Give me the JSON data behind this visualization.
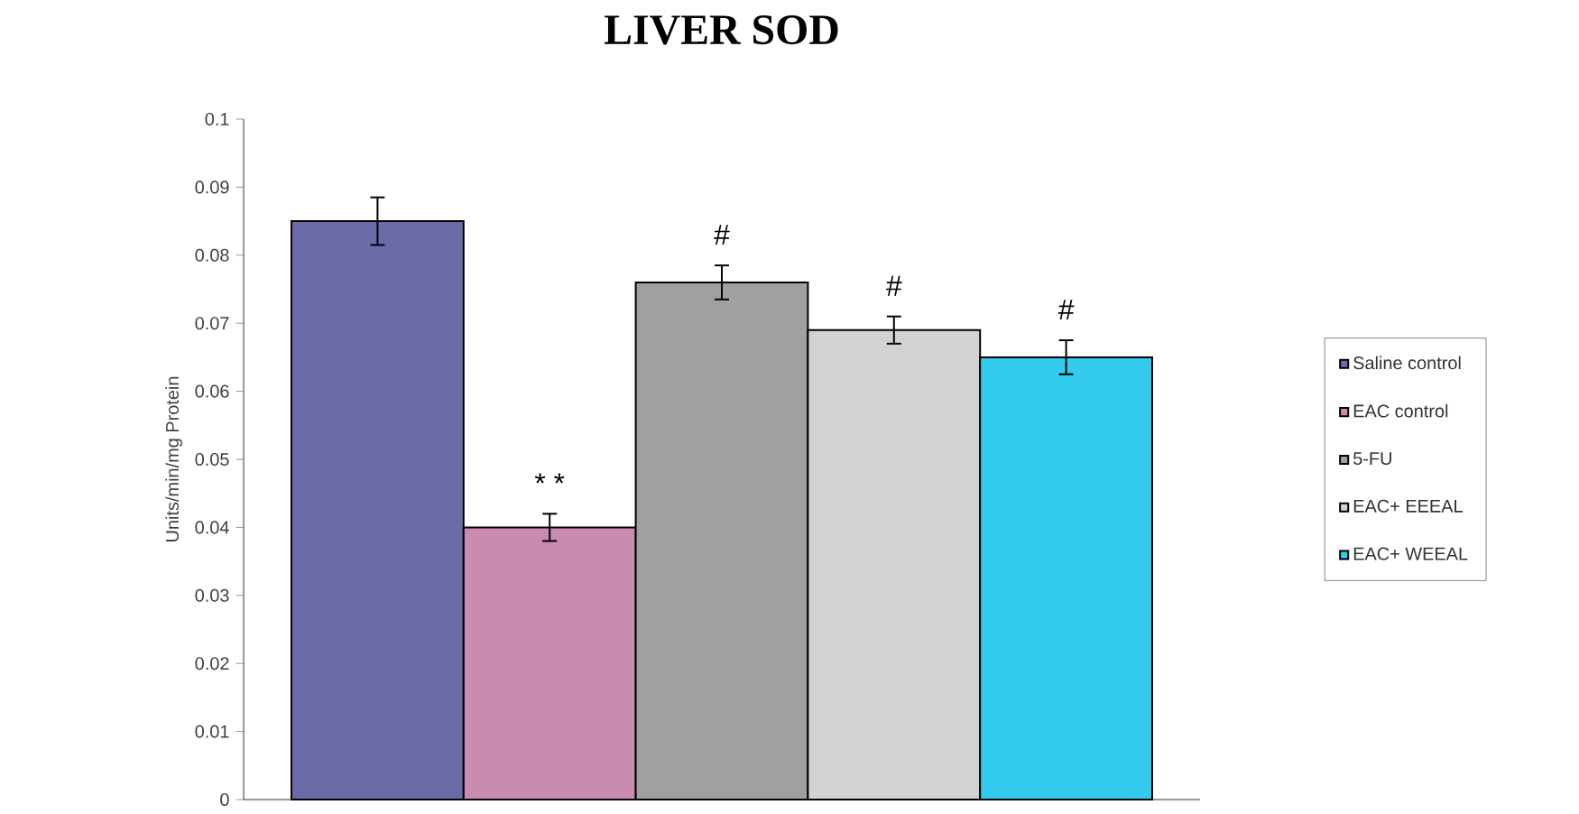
{
  "chart_data": {
    "type": "bar",
    "title": "LIVER SOD",
    "ylabel": "Units/min/mg Protein",
    "categories": [
      null
    ],
    "series": [
      {
        "name": "Saline  control",
        "color": "#6b6ba8",
        "values": [
          0.085
        ],
        "errors": [
          0.0035
        ]
      },
      {
        "name": "EAC control",
        "color": "#c98bb0",
        "values": [
          0.04
        ],
        "errors": [
          0.002
        ],
        "value_labels": [
          "* *"
        ]
      },
      {
        "name": "5-FU",
        "color": "#a0a0a0",
        "values": [
          0.076
        ],
        "errors": [
          0.0025
        ],
        "value_labels": [
          "#"
        ]
      },
      {
        "name": "EAC+ EEEAL",
        "color": "#d2d2d2",
        "values": [
          0.069
        ],
        "errors": [
          0.002
        ],
        "value_labels": [
          "#"
        ]
      },
      {
        "name": "EAC+  WEEAL",
        "color": "#33ccee",
        "values": [
          0.065
        ],
        "errors": [
          0.0025
        ],
        "value_labels": [
          "#"
        ]
      }
    ],
    "ylim": [
      0,
      0.1
    ],
    "yticks": [
      0,
      0.01,
      0.02,
      0.03,
      0.04,
      0.05,
      0.06,
      0.07,
      0.08,
      0.09,
      0.1
    ],
    "grid": false,
    "legend": "right"
  }
}
